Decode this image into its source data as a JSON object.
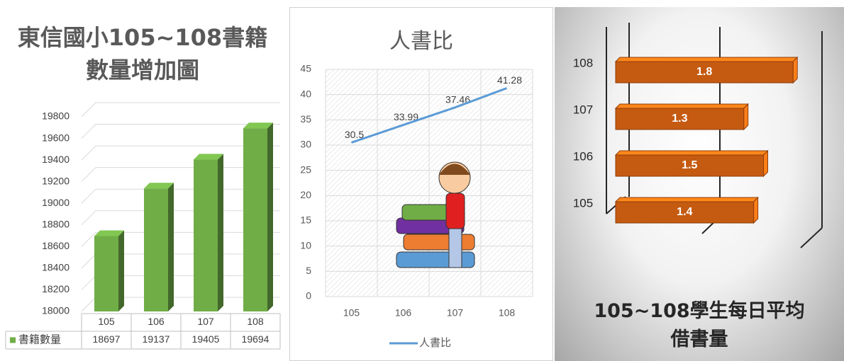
{
  "chart_data": [
    {
      "type": "bar",
      "title": "東信國小105~108書籍\n數量增加圖",
      "categories": [
        "105",
        "106",
        "107",
        "108"
      ],
      "series": [
        {
          "name": "書籍數量",
          "color": "#70ad47",
          "values": [
            18697,
            19137,
            19405,
            19694
          ]
        }
      ],
      "ylim": [
        18000,
        19800
      ],
      "yticks": [
        18000,
        18200,
        18400,
        18600,
        18800,
        19000,
        19200,
        19400,
        19600,
        19800
      ],
      "grid": true,
      "data_table": true
    },
    {
      "type": "line",
      "title": "人書比",
      "categories": [
        "105",
        "106",
        "107",
        "108"
      ],
      "series": [
        {
          "name": "人書比",
          "color": "#5b9bd5",
          "values": [
            30.5,
            33.99,
            37.46,
            41.28
          ]
        }
      ],
      "ylim": [
        0,
        45
      ],
      "yticks": [
        0,
        5,
        10,
        15,
        20,
        25,
        30,
        35,
        40,
        45
      ],
      "grid": true,
      "legend": "bottom"
    },
    {
      "type": "hbar",
      "title": "105~108學生每日平均\n借書量",
      "categories": [
        "105",
        "106",
        "107",
        "108"
      ],
      "values": [
        1.4,
        1.5,
        1.3,
        1.8
      ],
      "color": "#c55a11",
      "xlim": [
        0,
        2
      ]
    }
  ]
}
